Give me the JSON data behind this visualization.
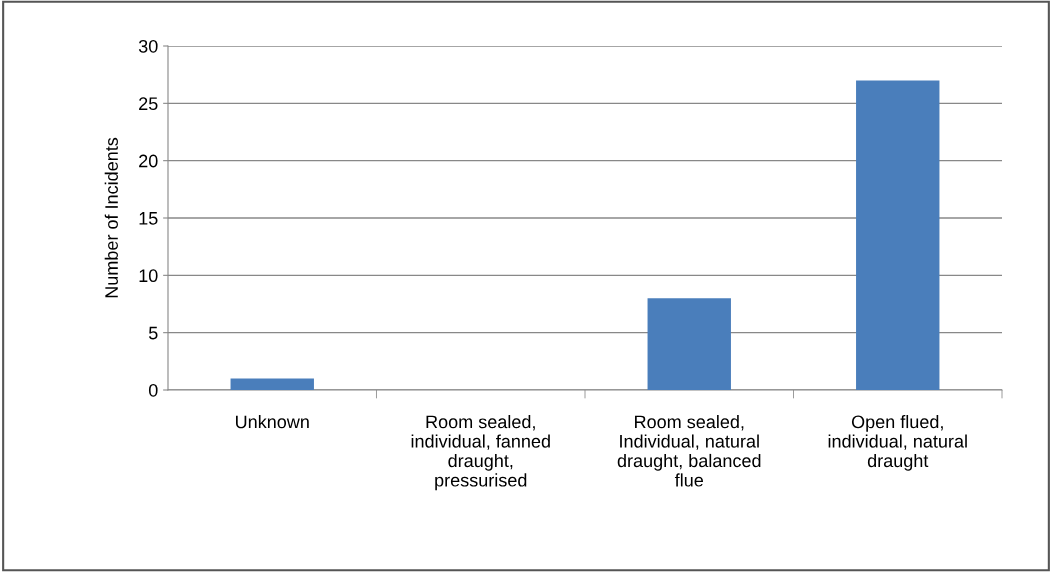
{
  "chart_data": {
    "type": "bar",
    "ylabel": "Number of Incidents",
    "categories": [
      "Unknown",
      "Room sealed,\nindividual, fanned\ndraught,\npressurised",
      "Room sealed,\nIndividual, natural\ndraught, balanced\nflue",
      "Open flued,\nindividual, natural\ndraught"
    ],
    "values": [
      1,
      0,
      8,
      27
    ],
    "color": "#4a7ebb",
    "ylim": [
      0,
      30
    ],
    "yticks": [
      0,
      5,
      10,
      15,
      20,
      25,
      30
    ],
    "grid": "y",
    "legend": false
  }
}
